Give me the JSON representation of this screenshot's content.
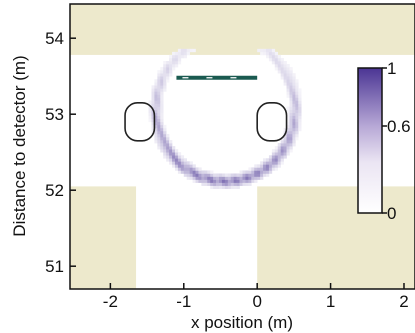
{
  "chart_data": {
    "type": "heatmap",
    "title": "",
    "xlabel": "x position (m)",
    "ylabel": "Distance to detector (m)",
    "xlim": [
      -2.55,
      2.15
    ],
    "ylim": [
      50.7,
      54.45
    ],
    "xticks": [
      -2,
      -1,
      0,
      1,
      2
    ],
    "xtick_labels": [
      "-2",
      "-1",
      "0",
      "1",
      "2"
    ],
    "yticks": [
      51,
      52,
      53,
      54
    ],
    "ytick_labels": [
      "51",
      "52",
      "53",
      "54"
    ],
    "colormap": {
      "low": "#ffffff",
      "high": "#4b3594"
    },
    "colorbar": {
      "range": [
        0,
        1
      ],
      "tick_values": [
        0,
        0.6,
        1
      ],
      "tick_labels": [
        "0",
        "0.6",
        "1"
      ],
      "placement": "top-right"
    },
    "walls": {
      "color": "#ede9cc",
      "regions": [
        {
          "x": [
            -2.55,
            2.15
          ],
          "y": [
            53.78,
            54.45
          ]
        },
        {
          "x": [
            -2.55,
            -1.65
          ],
          "y": [
            50.7,
            52.05
          ]
        },
        {
          "x": [
            0.0,
            2.15
          ],
          "y": [
            50.7,
            52.05
          ]
        }
      ]
    },
    "emission_arc": {
      "center": [
        -0.45,
        53.05
      ],
      "radius": 0.95,
      "angle_range_deg": [
        185,
        355
      ],
      "upper_fade_y": [
        53.05,
        53.85
      ],
      "peak_intensity": 0.7
    },
    "detector_bar": {
      "x": [
        -1.1,
        0.0
      ],
      "y": 53.48,
      "color": "#1a5a50"
    },
    "ovals": [
      {
        "center": [
          -1.6,
          52.9
        ],
        "width": 0.4,
        "height": 0.5
      },
      {
        "center": [
          0.2,
          52.9
        ],
        "width": 0.4,
        "height": 0.5
      }
    ]
  }
}
